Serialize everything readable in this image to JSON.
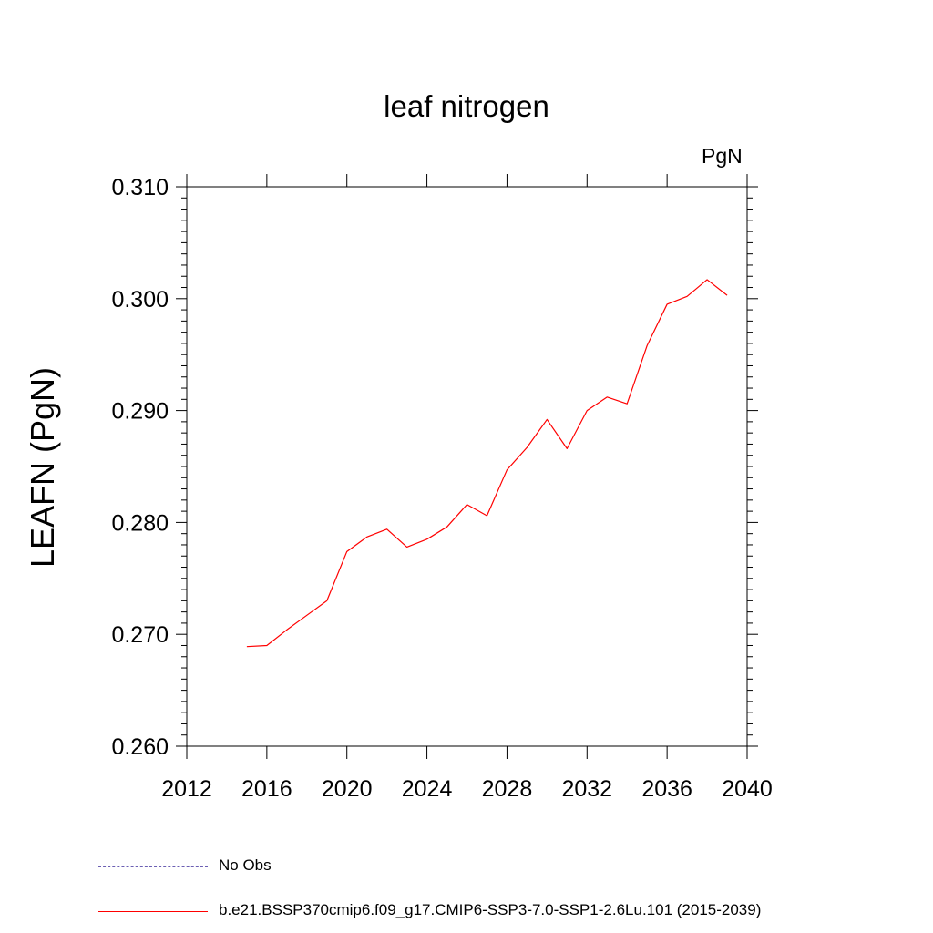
{
  "chart_data": {
    "type": "line",
    "title": "leaf nitrogen",
    "units": "PgN",
    "ylabel": "LEAFN  (PgN)",
    "xlim": [
      2012,
      2040
    ],
    "ylim": [
      0.26,
      0.31
    ],
    "x_ticks": [
      "2012",
      "2016",
      "2020",
      "2024",
      "2028",
      "2032",
      "2036",
      "2040"
    ],
    "y_ticks": [
      "0.260",
      "0.270",
      "0.280",
      "0.290",
      "0.300",
      "0.310"
    ],
    "grid": false,
    "legend_position": "bottom",
    "x": [
      2015,
      2016,
      2017,
      2018,
      2019,
      2020,
      2021,
      2022,
      2023,
      2024,
      2025,
      2026,
      2027,
      2028,
      2029,
      2030,
      2031,
      2032,
      2033,
      2034,
      2035,
      2036,
      2037,
      2038,
      2039
    ],
    "series": [
      {
        "name": "b.e21.BSSP370cmip6.f09_g17.CMIP6-SSP3-7.0-SSP1-2.6Lu.101 (2015-2039)",
        "color": "#ff0000",
        "values": [
          0.2689,
          0.269,
          0.2704,
          0.2717,
          0.273,
          0.2774,
          0.2787,
          0.2794,
          0.2778,
          0.2785,
          0.2796,
          0.2816,
          0.2806,
          0.2847,
          0.2867,
          0.2892,
          0.2866,
          0.29,
          0.2912,
          0.2906,
          0.2958,
          0.2995,
          0.3002,
          0.3017,
          0.3003
        ]
      }
    ],
    "legend": [
      {
        "label": "No Obs",
        "color": "#6b5fb3",
        "style": "dashed"
      },
      {
        "label": "b.e21.BSSP370cmip6.f09_g17.CMIP6-SSP3-7.0-SSP1-2.6Lu.101 (2015-2039)",
        "color": "#ff0000",
        "style": "solid"
      }
    ]
  }
}
